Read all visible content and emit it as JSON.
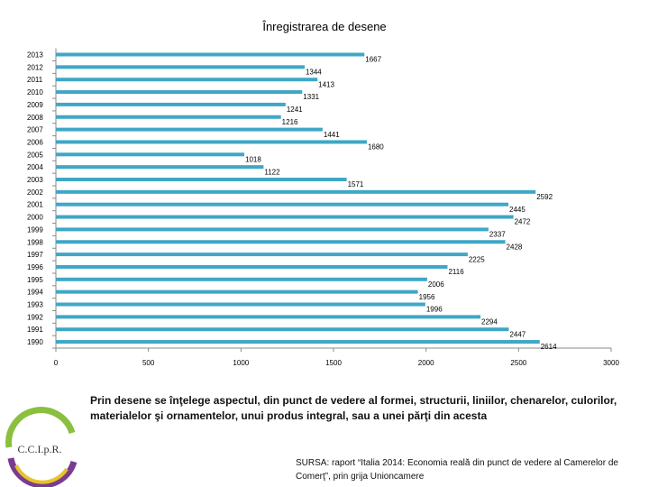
{
  "chart_data": {
    "type": "bar",
    "orientation": "horizontal",
    "title": "Înregistrarea de desene",
    "categories": [
      "2013",
      "2012",
      "2011",
      "2010",
      "2009",
      "2008",
      "2007",
      "2006",
      "2005",
      "2004",
      "2003",
      "2002",
      "2001",
      "2000",
      "1999",
      "1998",
      "1997",
      "1996",
      "1995",
      "1994",
      "1993",
      "1992",
      "1991",
      "1990"
    ],
    "values": [
      1667,
      1344,
      1413,
      1331,
      1241,
      1216,
      1441,
      1680,
      1018,
      1122,
      1571,
      2592,
      2445,
      2472,
      2337,
      2428,
      2225,
      2116,
      2006,
      1956,
      1996,
      2294,
      2447,
      2614
    ],
    "xlim": [
      0,
      3000
    ],
    "xticks": [
      0,
      500,
      1000,
      1500,
      2000,
      2500,
      3000
    ],
    "xlabel": "",
    "ylabel": "",
    "grid": false,
    "bar_color": "#3fa7c6"
  },
  "footnote": "Prin desene se înţelege aspectul, din punct de vedere al formei, structurii, liniilor, chenarelor, culorilor, materialelor şi ornamentelor, unui produs integral, sau a unei părţi din acesta",
  "source": "SURSA: raport “Italia 2014: Economia reală din punct de vedere al Camerelor de Comerţ”, prin grija Unioncamere",
  "logo": {
    "text": "C.C.I.p.R."
  }
}
